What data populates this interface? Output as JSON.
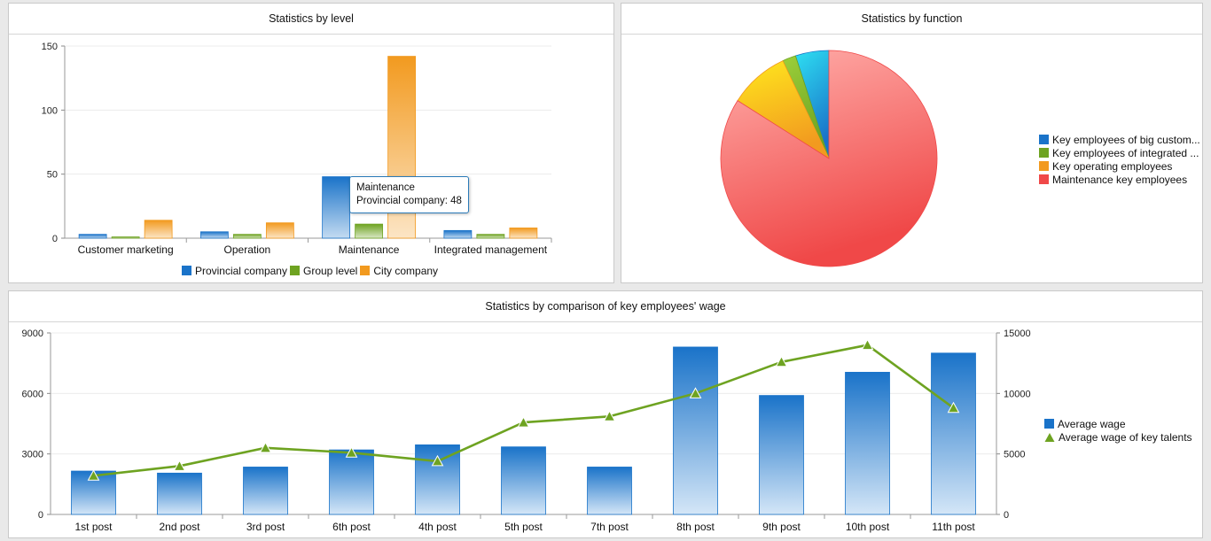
{
  "panels": {
    "level": {
      "title": "Statistics by level",
      "tooltip": {
        "category": "Maintenance",
        "text": "Provincial company: 48"
      }
    },
    "function": {
      "title": "Statistics by function"
    },
    "wage": {
      "title": "Statistics by comparison of key employees' wage"
    }
  },
  "chart_data": [
    {
      "type": "bar",
      "categories": [
        "Customer marketing",
        "Operation",
        "Maintenance",
        "Integrated management"
      ],
      "series": [
        {
          "name": "Provincial company",
          "values": [
            3,
            5,
            48,
            6
          ],
          "color": "#1a73c9"
        },
        {
          "name": "Group level",
          "values": [
            1,
            3,
            11,
            3
          ],
          "color": "#6ea321"
        },
        {
          "name": "City company",
          "values": [
            14,
            12,
            142,
            8
          ],
          "color": "#f29a1f"
        }
      ],
      "ylim": [
        0,
        150
      ],
      "yticks": [
        "0",
        "50",
        "100",
        "150"
      ],
      "legend": "bottom",
      "grid": true
    },
    {
      "type": "pie",
      "series": [
        {
          "name": "Key employees of big custom...",
          "value": 5,
          "color": "#1a73c9",
          "color2": "#2ee0f2"
        },
        {
          "name": "Key employees of integrated ...",
          "value": 2,
          "color": "#6ea321",
          "color2": "#9ccf3a"
        },
        {
          "name": "Key operating employees",
          "value": 9,
          "color": "#f29a1f",
          "color2": "#ffe81e"
        },
        {
          "name": "Maintenance key employees",
          "value": 84,
          "color": "#f04848",
          "color2": "#ffb0ac"
        }
      ],
      "legend": "right"
    },
    {
      "type": "bar",
      "categories": [
        "1st post",
        "2nd post",
        "3rd post",
        "6th post",
        "4th post",
        "5th post",
        "7th post",
        "8th post",
        "9th post",
        "10th post",
        "11th post"
      ],
      "series": [
        {
          "name": "Average wage",
          "type": "bar",
          "axis": "left",
          "values": [
            2150,
            2050,
            2350,
            3200,
            3450,
            3350,
            2350,
            8300,
            5900,
            7050,
            8000
          ],
          "color": "#1a73c9"
        },
        {
          "name": "Average wage of key talents",
          "type": "line",
          "axis": "right",
          "values": [
            3200,
            4000,
            5500,
            5100,
            4400,
            7600,
            8100,
            10000,
            12600,
            14000,
            8800
          ],
          "color": "#6ea321"
        }
      ],
      "ylim": [
        0,
        9000
      ],
      "yticks": [
        "0",
        "3000",
        "6000",
        "9000"
      ],
      "y2lim": [
        0,
        15000
      ],
      "y2ticks": [
        "0",
        "5000",
        "10000",
        "15000"
      ],
      "legend": "right",
      "grid": true
    }
  ]
}
